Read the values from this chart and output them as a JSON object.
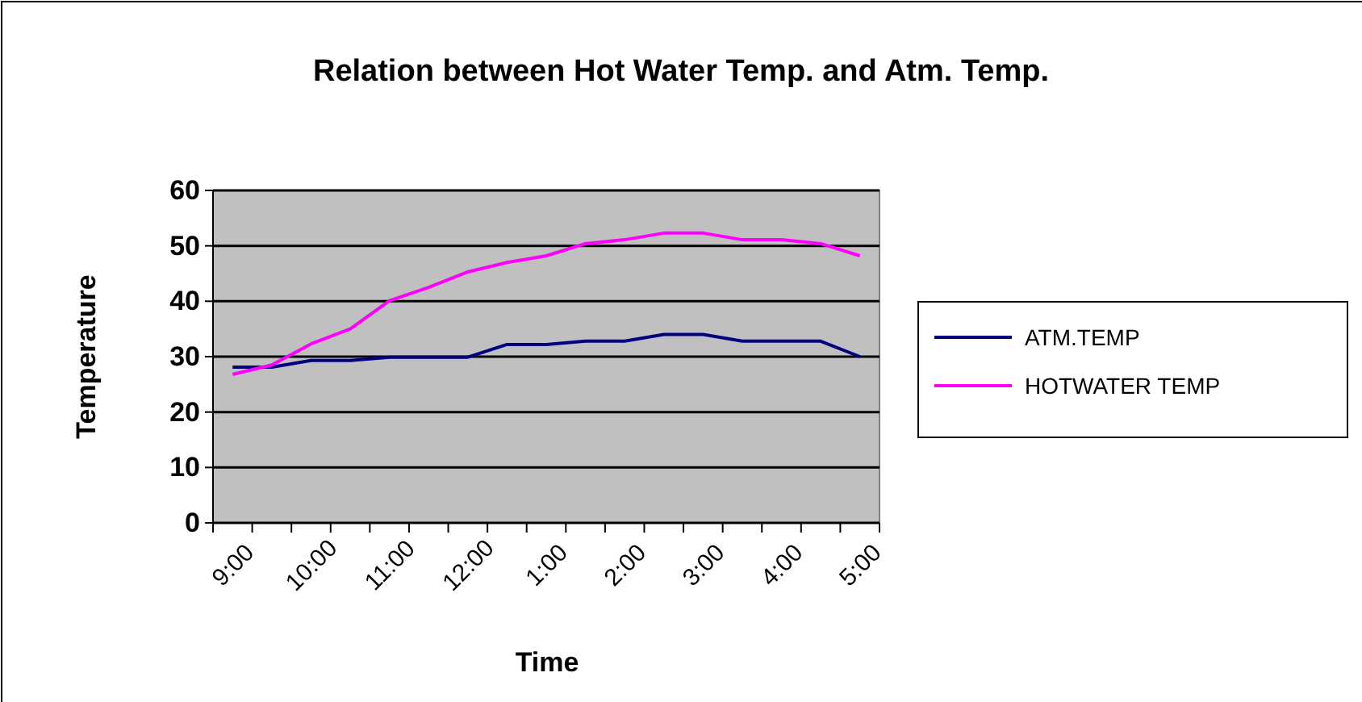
{
  "chart_data": {
    "type": "line",
    "title": "Relation between Hot Water Temp. and Atm. Temp.",
    "xlabel": "Time",
    "ylabel": "Temperature",
    "categories": [
      "9:00",
      null,
      "10:00",
      null,
      "11:00",
      null,
      "12:00",
      null,
      "1:00",
      null,
      "2:00",
      null,
      "3:00",
      null,
      "4:00",
      null,
      "5:00"
    ],
    "series": [
      {
        "name": "ATM.TEMP",
        "color": "#000080",
        "values": [
          28.1,
          28.1,
          29.3,
          29.3,
          29.9,
          29.9,
          29.9,
          32.2,
          32.2,
          32.8,
          32.8,
          34,
          34,
          32.8,
          32.8,
          32.8,
          30
        ]
      },
      {
        "name": "HOTWATER TEMP",
        "color": "#ff00ff",
        "values": [
          26.8,
          28.5,
          32.3,
          35,
          40.1,
          42.5,
          45.3,
          47,
          48.2,
          50.4,
          51.1,
          52.3,
          52.3,
          51.1,
          51.1,
          50.4,
          48.2
        ]
      }
    ],
    "ylim": [
      0,
      60
    ],
    "yticks": [
      0,
      10,
      20,
      30,
      40,
      50,
      60
    ],
    "grid": "y",
    "legend": "right",
    "marker": "none",
    "line_style": "solid"
  }
}
